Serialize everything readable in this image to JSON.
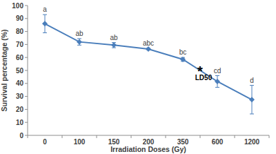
{
  "chart_data": {
    "type": "line",
    "x_label": "Irradiation Doses (Gy)",
    "y_label": "Survival percentage (%)",
    "categories": [
      "0",
      "100",
      "150",
      "200",
      "350",
      "600",
      "1200"
    ],
    "values": [
      86,
      72,
      69.5,
      66.5,
      58.5,
      41.5,
      27.5
    ],
    "errors": [
      7,
      2.5,
      2,
      0.5,
      1.5,
      4.5,
      11
    ],
    "significance_labels": [
      "a",
      "ab",
      "ab",
      "abc",
      "bc",
      "cd",
      "d"
    ],
    "color": "#4a7ebb",
    "marker": "diamond",
    "ylim": [
      0,
      100
    ],
    "yticks": [
      0,
      10,
      20,
      30,
      40,
      50,
      60,
      70,
      80,
      90,
      100
    ],
    "grid": false,
    "annotations": [
      {
        "text": "LD50",
        "symbol": "*",
        "y": 50
      }
    ]
  }
}
